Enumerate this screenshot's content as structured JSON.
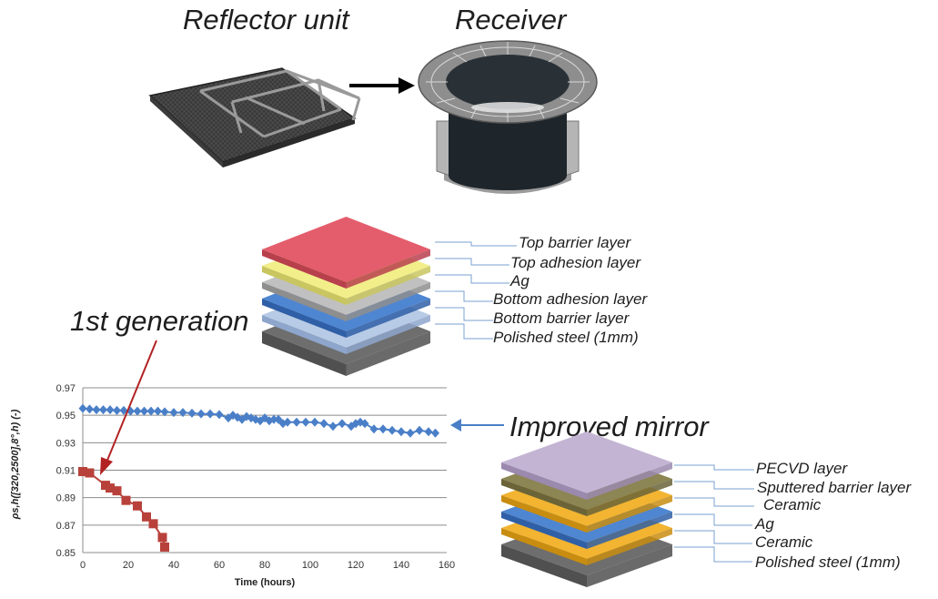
{
  "headings": {
    "reflector": "Reflector unit",
    "receiver": "Receiver",
    "first_gen": "1st generation",
    "improved": "Improved mirror"
  },
  "stack1": {
    "labels": [
      "Top barrier layer",
      "Top adhesion layer",
      "Ag",
      "Bottom adhesion layer",
      "Bottom barrier layer",
      "Polished steel (1mm)"
    ],
    "layers": [
      {
        "name": "Top barrier layer",
        "top": "#e45d6c",
        "side": "#b8404d"
      },
      {
        "name": "Top adhesion layer",
        "top": "#f2ef8a",
        "side": "#c9c560"
      },
      {
        "name": "Ag",
        "top": "#c0c0c0",
        "side": "#8e8e8e"
      },
      {
        "name": "Bottom adhesion layer",
        "top": "#4f86d2",
        "side": "#2f5fa6"
      },
      {
        "name": "Bottom barrier layer",
        "top": "#b8cbe6",
        "side": "#8ea6cc"
      },
      {
        "name": "Polished steel (1mm)",
        "top": "#6e6e6e",
        "side": "#505050"
      }
    ]
  },
  "stack2": {
    "labels": [
      "PECVD layer",
      "Sputtered barrier layer",
      "Ceramic",
      "Ag",
      "Ceramic",
      "Polished steel (1mm)"
    ],
    "layers": [
      {
        "name": "PECVD layer",
        "top": "#c3b4d4",
        "side": "#9b8aae"
      },
      {
        "name": "Sputtered barrier layer",
        "top": "#8c8554",
        "side": "#6a6438"
      },
      {
        "name": "Ceramic",
        "top": "#f2b431",
        "side": "#c88d10"
      },
      {
        "name": "Ag",
        "top": "#4f86d2",
        "side": "#2f5fa6"
      },
      {
        "name": "Ceramic",
        "top": "#f2b431",
        "side": "#c88d10"
      },
      {
        "name": "Polished steel (1mm)",
        "top": "#6e6e6e",
        "side": "#505050"
      }
    ]
  },
  "chart_data": {
    "type": "line",
    "xlabel": "Time (hours)",
    "ylabel": "ρs,h([320,2500],8°,h) (-)",
    "xlim": [
      0,
      160
    ],
    "ylim": [
      0.85,
      0.97
    ],
    "xticks": [
      0,
      20,
      40,
      60,
      80,
      100,
      120,
      140,
      160
    ],
    "yticks": [
      0.85,
      0.87,
      0.89,
      0.91,
      0.93,
      0.95,
      0.97
    ],
    "ytick_labels": [
      "0.85",
      "0.87",
      "0.89",
      "0.91",
      "0.93",
      "0.95",
      "0.97"
    ],
    "grid": true,
    "series": [
      {
        "name": "Improved mirror",
        "color": "#4a7fc8",
        "marker": "diamond",
        "x": [
          0,
          3,
          6,
          9,
          12,
          15,
          18,
          21,
          24,
          27,
          30,
          33,
          36,
          40,
          44,
          48,
          52,
          56,
          60,
          64,
          66,
          68,
          70,
          72,
          74,
          76,
          78,
          80,
          82,
          84,
          86,
          88,
          90,
          94,
          98,
          102,
          106,
          110,
          114,
          118,
          120,
          122,
          124,
          128,
          132,
          136,
          140,
          144,
          148,
          152,
          155
        ],
        "y": [
          0.955,
          0.9545,
          0.954,
          0.954,
          0.954,
          0.9535,
          0.9535,
          0.953,
          0.953,
          0.953,
          0.953,
          0.953,
          0.9525,
          0.952,
          0.952,
          0.9515,
          0.951,
          0.951,
          0.9505,
          0.948,
          0.95,
          0.9485,
          0.947,
          0.949,
          0.948,
          0.947,
          0.946,
          0.948,
          0.946,
          0.947,
          0.947,
          0.944,
          0.945,
          0.945,
          0.945,
          0.945,
          0.944,
          0.942,
          0.944,
          0.942,
          0.944,
          0.945,
          0.944,
          0.94,
          0.94,
          0.939,
          0.938,
          0.937,
          0.939,
          0.938,
          0.937
        ]
      },
      {
        "name": "1st generation",
        "color": "#b9413b",
        "marker": "square",
        "x": [
          0,
          3,
          10,
          12,
          15,
          19,
          24,
          28,
          31,
          35,
          36
        ],
        "y": [
          0.909,
          0.908,
          0.899,
          0.897,
          0.895,
          0.888,
          0.884,
          0.876,
          0.871,
          0.861,
          0.854
        ]
      }
    ]
  }
}
